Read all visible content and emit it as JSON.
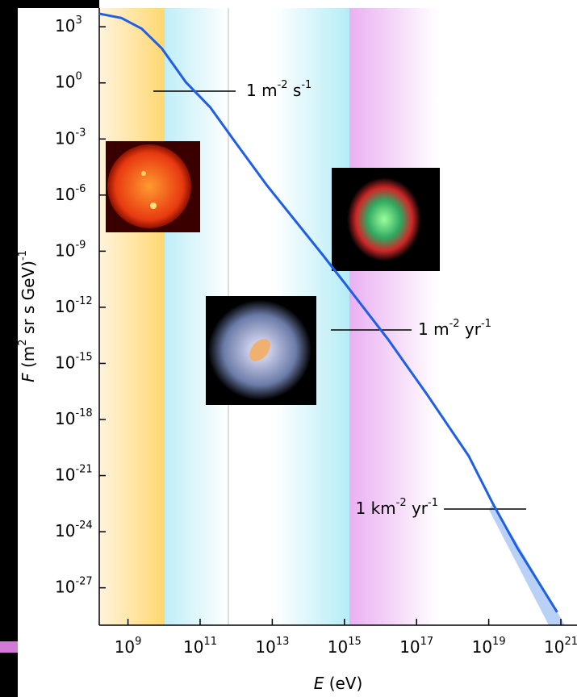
{
  "chart_data": {
    "type": "line",
    "x_label": "E (eV)",
    "y_label": "F (m^2 sr s GeV)^-1",
    "x_scale": "log",
    "y_scale": "log",
    "xlim": [
      160000000.0,
      2.8e+21
    ],
    "ylim": [
      1e-29,
      10000.0
    ],
    "xticks": [
      {
        "value": 1000000000.0,
        "label": "10^9"
      },
      {
        "value": 100000000000.0,
        "label": "10^11"
      },
      {
        "value": 10000000000000.0,
        "label": "10^13"
      },
      {
        "value": 1000000000000000.0,
        "label": "10^15"
      },
      {
        "value": 1e+17,
        "label": "10^17"
      },
      {
        "value": 1e+19,
        "label": "10^19"
      },
      {
        "value": 1e+21,
        "label": "10^21"
      }
    ],
    "yticks": [
      {
        "value": 1000.0,
        "label": "10^3"
      },
      {
        "value": 1,
        "label": "10^0"
      },
      {
        "value": 0.001,
        "label": "10^-3"
      },
      {
        "value": 1e-06,
        "label": "10^-6"
      },
      {
        "value": 1e-09,
        "label": "10^-9"
      },
      {
        "value": 1e-12,
        "label": "10^-12"
      },
      {
        "value": 1e-15,
        "label": "10^-15"
      },
      {
        "value": 1e-18,
        "label": "10^-18"
      },
      {
        "value": 1e-21,
        "label": "10^-21"
      },
      {
        "value": 1e-24,
        "label": "10^-24"
      },
      {
        "value": 1e-27,
        "label": "10^-27"
      }
    ],
    "x": [
      160000000.0,
      660000000.0,
      2400000000.0,
      8700000000.0,
      40000000000.0,
      190000000000.0,
      890000000000.0,
      7200000000000.0,
      250000000000000.0,
      1200000000000000.0,
      1.6e+16,
      2e+17,
      2.8e+18,
      1.3e+19,
      6.3e+19,
      7.9e+20
    ],
    "values": [
      5000,
      2950,
      790,
      69,
      1.1,
      0.05,
      0.00079,
      3.2e-06,
      6.3e-10,
      1.3e-11,
      2e-14,
      2e-17,
      1.1e-20,
      3.2e-23,
      1.3e-25,
      5e-29
    ],
    "color": "#1f5fe6",
    "annotations": [
      "1 m^-2 s^-1",
      "1 m^-2 yr^-1",
      "1 km^-2 yr^-1"
    ]
  }
}
